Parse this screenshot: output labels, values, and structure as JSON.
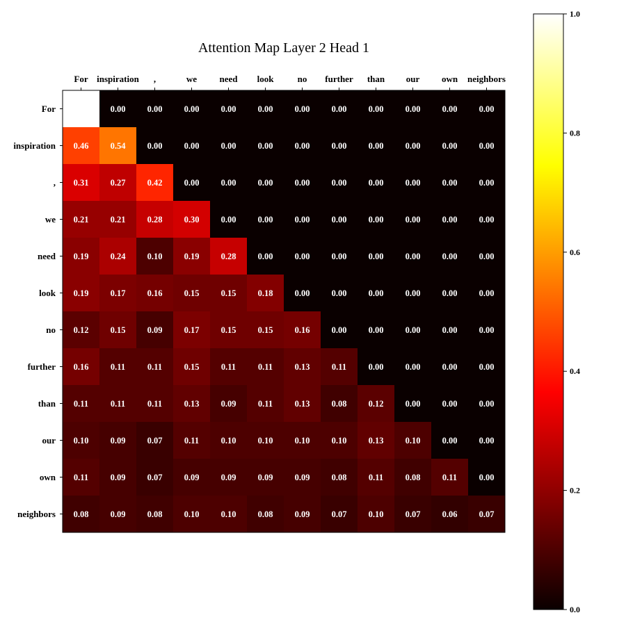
{
  "chart_data": {
    "type": "heatmap",
    "title": "Attention Map Layer 2 Head 1",
    "colormap": "hot",
    "x_tokens": [
      "For",
      "inspiration",
      ",",
      "we",
      "need",
      "look",
      "no",
      "further",
      "than",
      "our",
      "own",
      "neighbors"
    ],
    "y_tokens": [
      "For",
      "inspiration",
      ",",
      "we",
      "need",
      "look",
      "no",
      "further",
      "than",
      "our",
      "own",
      "neighbors"
    ],
    "show_value_on_diagonal_first_cell": false,
    "values": [
      [
        1.0,
        0.0,
        0.0,
        0.0,
        0.0,
        0.0,
        0.0,
        0.0,
        0.0,
        0.0,
        0.0,
        0.0
      ],
      [
        0.46,
        0.54,
        0.0,
        0.0,
        0.0,
        0.0,
        0.0,
        0.0,
        0.0,
        0.0,
        0.0,
        0.0
      ],
      [
        0.31,
        0.27,
        0.42,
        0.0,
        0.0,
        0.0,
        0.0,
        0.0,
        0.0,
        0.0,
        0.0,
        0.0
      ],
      [
        0.21,
        0.21,
        0.28,
        0.3,
        0.0,
        0.0,
        0.0,
        0.0,
        0.0,
        0.0,
        0.0,
        0.0
      ],
      [
        0.19,
        0.24,
        0.1,
        0.19,
        0.28,
        0.0,
        0.0,
        0.0,
        0.0,
        0.0,
        0.0,
        0.0
      ],
      [
        0.19,
        0.17,
        0.16,
        0.15,
        0.15,
        0.18,
        0.0,
        0.0,
        0.0,
        0.0,
        0.0,
        0.0
      ],
      [
        0.12,
        0.15,
        0.09,
        0.17,
        0.15,
        0.15,
        0.16,
        0.0,
        0.0,
        0.0,
        0.0,
        0.0
      ],
      [
        0.16,
        0.11,
        0.11,
        0.15,
        0.11,
        0.11,
        0.13,
        0.11,
        0.0,
        0.0,
        0.0,
        0.0
      ],
      [
        0.11,
        0.11,
        0.11,
        0.13,
        0.09,
        0.11,
        0.13,
        0.08,
        0.12,
        0.0,
        0.0,
        0.0
      ],
      [
        0.1,
        0.09,
        0.07,
        0.11,
        0.1,
        0.1,
        0.1,
        0.1,
        0.13,
        0.1,
        0.0,
        0.0
      ],
      [
        0.11,
        0.09,
        0.07,
        0.09,
        0.09,
        0.09,
        0.09,
        0.08,
        0.11,
        0.08,
        0.11,
        0.0
      ],
      [
        0.08,
        0.09,
        0.08,
        0.1,
        0.1,
        0.08,
        0.09,
        0.07,
        0.1,
        0.07,
        0.06,
        0.07
      ]
    ],
    "colorbar": {
      "range": [
        0.0,
        1.0
      ],
      "ticks": [
        0.0,
        0.2,
        0.4,
        0.6,
        0.8,
        1.0
      ],
      "tick_labels": [
        "0.0",
        "0.2",
        "0.4",
        "0.6",
        "0.8",
        "1.0"
      ]
    }
  }
}
